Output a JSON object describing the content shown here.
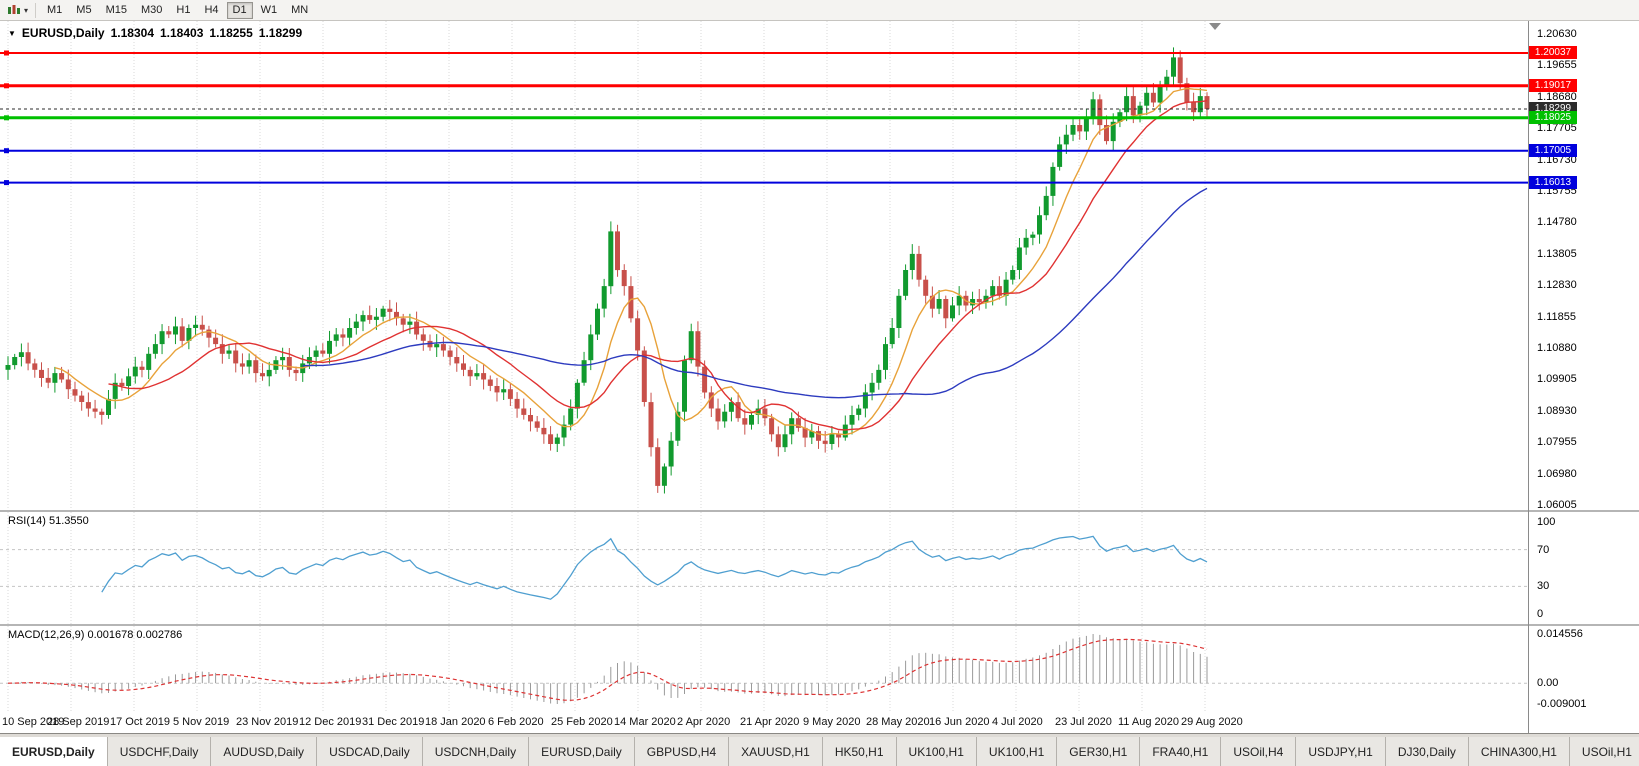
{
  "icons": {
    "dropdown": "▾",
    "symbol_caret": "▼"
  },
  "toolbar": {
    "timeframes": [
      "M1",
      "M5",
      "M15",
      "M30",
      "H1",
      "H4",
      "D1",
      "W1",
      "MN"
    ],
    "active_timeframe": "D1"
  },
  "chart_header": {
    "symbol": "EURUSD,Daily",
    "open": "1.18304",
    "high": "1.18403",
    "low": "1.18255",
    "close": "1.18299"
  },
  "price_axis": {
    "labels": [
      "1.20630",
      "1.19655",
      "1.18680",
      "1.17705",
      "1.16730",
      "1.15755",
      "1.14780",
      "1.13805",
      "1.12830",
      "1.11855",
      "1.10880",
      "1.09905",
      "1.08930",
      "1.07955",
      "1.06980",
      "1.06005"
    ]
  },
  "time_axis": {
    "labels": [
      "10 Sep 2019",
      "28 Sep 2019",
      "17 Oct 2019",
      "5 Nov 2019",
      "23 Nov 2019",
      "12 Dec 2019",
      "31 Dec 2019",
      "18 Jan 2020",
      "6 Feb 2020",
      "25 Feb 2020",
      "14 Mar 2020",
      "2 Apr 2020",
      "21 Apr 2020",
      "9 May 2020",
      "28 May 2020",
      "16 Jun 2020",
      "4 Jul 2020",
      "23 Jul 2020",
      "11 Aug 2020",
      "29 Aug 2020"
    ]
  },
  "rsi": {
    "label": "RSI(14) 51.3550",
    "period": 14,
    "value": "51.3550",
    "axis_labels": [
      "100",
      "70",
      "30",
      "0"
    ],
    "upper_level": 70,
    "lower_level": 30,
    "line_color": "#4f9fd0"
  },
  "macd": {
    "label": "MACD(12,26,9) 0.001678 0.002786",
    "macd_value": "0.001678",
    "signal_value": "0.002786",
    "axis_top": "0.014556",
    "axis_zero": "0.00",
    "axis_bottom": "-0.009001",
    "histogram_color": "#9a9a9a",
    "signal_color": "#dd3333"
  },
  "tabs": {
    "items": [
      {
        "label": "EURUSD,Daily",
        "active": true
      },
      {
        "label": "USDCHF,Daily",
        "active": false
      },
      {
        "label": "AUDUSD,Daily",
        "active": false
      },
      {
        "label": "USDCAD,Daily",
        "active": false
      },
      {
        "label": "USDCNH,Daily",
        "active": false
      },
      {
        "label": "EURUSD,Daily",
        "active": false
      },
      {
        "label": "GBPUSD,H4",
        "active": false
      },
      {
        "label": "XAUUSD,H1",
        "active": false
      },
      {
        "label": "HK50,H1",
        "active": false
      },
      {
        "label": "UK100,H1",
        "active": false
      },
      {
        "label": "UK100,H1",
        "active": false
      },
      {
        "label": "GER30,H1",
        "active": false
      },
      {
        "label": "FRA40,H1",
        "active": false
      },
      {
        "label": "USOil,H4",
        "active": false
      },
      {
        "label": "USDJPY,H1",
        "active": false
      },
      {
        "label": "DJ30,Daily",
        "active": false
      },
      {
        "label": "CHINA300,H1",
        "active": false
      },
      {
        "label": "USOil,H1",
        "active": false
      }
    ]
  },
  "chart_data": {
    "type": "candlestick",
    "symbol": "EURUSD",
    "timeframe": "Daily",
    "title": "EURUSD,Daily 1.18304 1.18403 1.18255 1.18299",
    "y_range": [
      1.0585,
      1.2103
    ],
    "candle_up_color": "#119a2e",
    "candle_down_color": "#c8504a",
    "closes": [
      1.1035,
      1.106,
      1.1075,
      1.104,
      1.102,
      1.0995,
      1.098,
      1.101,
      1.099,
      1.096,
      1.094,
      1.092,
      1.09,
      1.089,
      1.088,
      1.093,
      1.098,
      1.097,
      1.1,
      1.103,
      1.102,
      1.107,
      1.11,
      1.114,
      1.113,
      1.1155,
      1.111,
      1.115,
      1.116,
      1.1145,
      1.112,
      1.11,
      1.107,
      1.108,
      1.104,
      1.103,
      1.105,
      1.101,
      1.1,
      1.102,
      1.105,
      1.106,
      1.102,
      1.101,
      1.104,
      1.106,
      1.108,
      1.107,
      1.111,
      1.113,
      1.112,
      1.115,
      1.117,
      1.119,
      1.1175,
      1.1185,
      1.121,
      1.12,
      1.118,
      1.116,
      1.117,
      1.113,
      1.111,
      1.109,
      1.11,
      1.108,
      1.106,
      1.104,
      1.102,
      1.1,
      1.101,
      1.099,
      1.097,
      1.095,
      1.096,
      1.093,
      1.09,
      1.088,
      1.086,
      1.084,
      1.082,
      1.079,
      1.081,
      1.085,
      1.09,
      1.098,
      1.105,
      1.113,
      1.121,
      1.128,
      1.145,
      1.133,
      1.128,
      1.118,
      1.108,
      1.092,
      1.078,
      1.066,
      1.072,
      1.08,
      1.089,
      1.105,
      1.114,
      1.103,
      1.095,
      1.09,
      1.086,
      1.089,
      1.092,
      1.087,
      1.085,
      1.088,
      1.09,
      1.087,
      1.082,
      1.078,
      1.082,
      1.087,
      1.084,
      1.081,
      1.083,
      1.08,
      1.079,
      1.082,
      1.081,
      1.085,
      1.088,
      1.09,
      1.095,
      1.098,
      1.102,
      1.11,
      1.115,
      1.125,
      1.133,
      1.138,
      1.13,
      1.125,
      1.121,
      1.124,
      1.118,
      1.122,
      1.125,
      1.122,
      1.124,
      1.123,
      1.125,
      1.128,
      1.125,
      1.13,
      1.133,
      1.14,
      1.143,
      1.144,
      1.15,
      1.156,
      1.165,
      1.172,
      1.175,
      1.178,
      1.176,
      1.18,
      1.186,
      1.178,
      1.173,
      1.179,
      1.182,
      1.187,
      1.181,
      1.184,
      1.188,
      1.185,
      1.19,
      1.193,
      1.199,
      1.191,
      1.185,
      1.182,
      1.187,
      1.183
    ],
    "moving_averages": [
      {
        "name": "MA-fast",
        "period": 8,
        "color": "#e8a23a"
      },
      {
        "name": "MA-mid",
        "period": 16,
        "color": "#e03232"
      },
      {
        "name": "MA-slow",
        "period": 45,
        "color": "#2d3bbf"
      }
    ],
    "levels": [
      {
        "price": 1.20037,
        "label": "1.20037",
        "color": "#ff0000",
        "width": 2,
        "style": "solid",
        "current": false
      },
      {
        "price": 1.19017,
        "label": "1.19017",
        "color": "#ff0000",
        "width": 3,
        "style": "solid",
        "current": false
      },
      {
        "price": 1.18299,
        "label": "1.18299",
        "color": "#2b2b2b",
        "width": 1,
        "style": "dashed",
        "current": true
      },
      {
        "price": 1.18025,
        "label": "1.18025",
        "color": "#00c000",
        "width": 3,
        "style": "solid",
        "current": false
      },
      {
        "price": 1.17005,
        "label": "1.17005",
        "color": "#0000dd",
        "width": 2,
        "style": "solid",
        "current": false
      },
      {
        "price": 1.16013,
        "label": "1.16013",
        "color": "#0000dd",
        "width": 2,
        "style": "solid",
        "current": false
      }
    ]
  }
}
